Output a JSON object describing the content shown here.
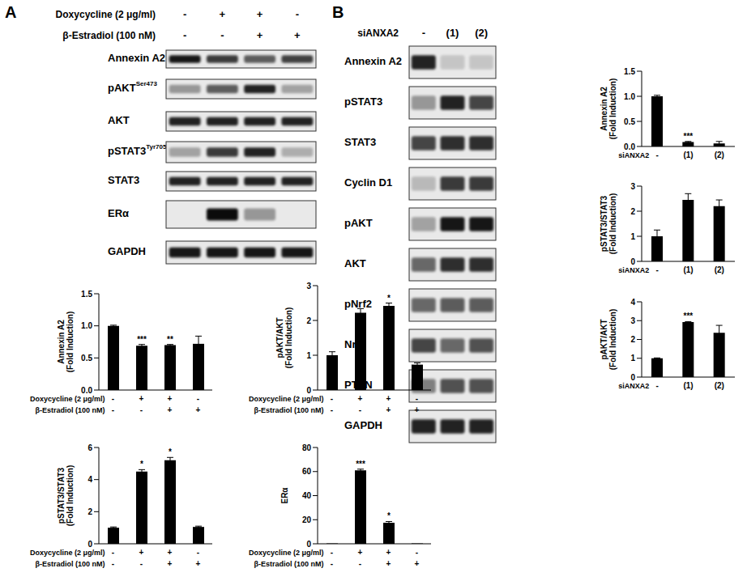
{
  "panel_labels": [
    "A",
    "B"
  ],
  "blots": {
    "A": {
      "header": [
        {
          "label": "Doxycycline (2 μg/ml)",
          "signs": [
            "-",
            "+",
            "+",
            "-"
          ]
        },
        {
          "label": "β-Estradiol (100 nM)",
          "signs": [
            "-",
            "-",
            "+",
            "+"
          ]
        }
      ],
      "rows": [
        {
          "label": "Annexin A2",
          "intensity": [
            0.9,
            0.75,
            0.6,
            0.72
          ]
        },
        {
          "label": "pAKT",
          "superscript": "Ser473",
          "intensity": [
            0.35,
            0.6,
            0.85,
            0.3
          ]
        },
        {
          "label": "AKT",
          "intensity": [
            0.85,
            0.85,
            0.85,
            0.85
          ]
        },
        {
          "label": "pSTAT3",
          "superscript": "Tyr705",
          "intensity": [
            0.3,
            0.75,
            0.85,
            0.25
          ]
        },
        {
          "label": "STAT3",
          "intensity": [
            0.85,
            0.85,
            0.85,
            0.85
          ]
        },
        {
          "label": "ERα",
          "intensity": [
            0,
            0.95,
            0.35,
            0
          ]
        },
        {
          "label": "GAPDH",
          "intensity": [
            0.9,
            0.9,
            0.9,
            0.9
          ]
        }
      ]
    },
    "B": {
      "header": [
        {
          "label": "siANXA2",
          "signs": [
            "-",
            "(1)",
            "(2)"
          ]
        }
      ],
      "rows": [
        {
          "label": "Annexin A2",
          "intensity": [
            0.85,
            0.15,
            0.15
          ]
        },
        {
          "label": "pSTAT3",
          "intensity": [
            0.35,
            0.85,
            0.7
          ]
        },
        {
          "label": "STAT3",
          "intensity": [
            0.7,
            0.8,
            0.8
          ]
        },
        {
          "label": "Cyclin D1",
          "intensity": [
            0.2,
            0.75,
            0.75
          ]
        },
        {
          "label": "pAKT",
          "intensity": [
            0.3,
            0.9,
            0.9
          ]
        },
        {
          "label": "AKT",
          "intensity": [
            0.55,
            0.8,
            0.8
          ]
        },
        {
          "label": "pNrf2",
          "intensity": [
            0.55,
            0.6,
            0.6
          ]
        },
        {
          "label": "Nrf2",
          "intensity": [
            0.7,
            0.55,
            0.65
          ]
        },
        {
          "label": "PTEN",
          "intensity": [
            0.45,
            0.65,
            0.65
          ]
        },
        {
          "label": "GAPDH",
          "intensity": [
            0.85,
            0.85,
            0.85
          ]
        }
      ]
    }
  },
  "chart_data": [
    {
      "type": "bar",
      "ylabel": [
        "Annexin A2",
        "(Fold Induction)"
      ],
      "x_rows": [
        {
          "label": "Doxycycline (2 μg/ml)",
          "values": [
            "-",
            "+",
            "+",
            "-"
          ]
        },
        {
          "label": "β-Estradiol (100 nM)",
          "values": [
            "-",
            "-",
            "+",
            "+"
          ]
        }
      ],
      "values": [
        1.0,
        0.69,
        0.7,
        0.72
      ],
      "errors": [
        0.01,
        0.02,
        0.01,
        0.12
      ],
      "significance": [
        null,
        "***",
        "**",
        null
      ],
      "color": "#000000",
      "ylim": [
        0,
        1.5
      ],
      "yticks": [
        {
          "value": 0,
          "label": "0.0"
        },
        {
          "value": 0.5,
          "label": "0.5"
        },
        {
          "value": 1,
          "label": "1.0"
        },
        {
          "value": 1.5,
          "label": "1.5"
        }
      ]
    },
    {
      "type": "bar",
      "ylabel": [
        "pAKT/AKT",
        "(Fold Induction)"
      ],
      "x_rows": [
        {
          "label": "Doxycycline (2 μg/ml)",
          "values": [
            "-",
            "+",
            "+",
            "-"
          ]
        },
        {
          "label": "β-Estradiol (100 nM)",
          "values": [
            "-",
            "-",
            "+",
            "+"
          ]
        }
      ],
      "values": [
        1.0,
        2.22,
        2.42,
        0.73
      ],
      "errors": [
        0.1,
        0.12,
        0.08,
        0.05
      ],
      "significance": [
        null,
        null,
        "*",
        null
      ],
      "color": "#000000",
      "ylim": [
        0,
        3
      ],
      "yticks": [
        0,
        1,
        2,
        3
      ]
    },
    {
      "type": "bar",
      "ylabel": [
        "pSTAT3/STAT3",
        "(Fold Induction)"
      ],
      "x_rows": [
        {
          "label": "Doxycycline (2 μg/ml)",
          "values": [
            "-",
            "+",
            "+",
            "-"
          ]
        },
        {
          "label": "β-Estradiol (100 nM)",
          "values": [
            "-",
            "-",
            "+",
            "+"
          ]
        }
      ],
      "values": [
        1.0,
        4.5,
        5.2,
        1.05
      ],
      "errors": [
        0.05,
        0.12,
        0.18,
        0.05
      ],
      "significance": [
        null,
        "*",
        "*",
        null
      ],
      "color": "#000000",
      "ylim": [
        0,
        6
      ],
      "yticks": [
        0,
        2,
        4,
        6
      ]
    },
    {
      "type": "bar",
      "ylabel": [
        "ERα"
      ],
      "x_rows": [
        {
          "label": "Doxycycline (2 μg/ml)",
          "values": [
            "-",
            "+",
            "+",
            "-"
          ]
        },
        {
          "label": "β-Estradiol (100 nM)",
          "values": [
            "-",
            "-",
            "+",
            "+"
          ]
        }
      ],
      "values": [
        0.3,
        61,
        17.5,
        0.3
      ],
      "errors": [
        0,
        1,
        1,
        0
      ],
      "significance": [
        null,
        "***",
        "*",
        null
      ],
      "color": "#000000",
      "ylim": [
        0,
        80
      ],
      "yticks": [
        0,
        20,
        40,
        60,
        80
      ]
    },
    {
      "type": "bar",
      "ylabel": [
        "Annexin A2",
        "(Fold Induction)"
      ],
      "x_rows": [
        {
          "label": "siANXA2",
          "values": [
            "-",
            "(1)",
            "(2)"
          ]
        }
      ],
      "values": [
        1.0,
        0.09,
        0.06
      ],
      "errors": [
        0.02,
        0.01,
        0.04
      ],
      "significance": [
        null,
        "***",
        null
      ],
      "color": "#000000",
      "ylim": [
        0,
        1.5
      ],
      "yticks": [
        {
          "value": 0,
          "label": "0.0"
        },
        {
          "value": 0.5,
          "label": "0.5"
        },
        {
          "value": 1,
          "label": "1.0"
        },
        {
          "value": 1.5,
          "label": "1.5"
        }
      ]
    },
    {
      "type": "bar",
      "ylabel": [
        "pSTAT3/STAT3",
        "(Fold Induction)"
      ],
      "x_rows": [
        {
          "label": "siANXA2",
          "values": [
            "-",
            "(1)",
            "(2)"
          ]
        }
      ],
      "values": [
        1.0,
        2.45,
        2.2
      ],
      "errors": [
        0.25,
        0.25,
        0.25
      ],
      "significance": [
        null,
        null,
        null
      ],
      "color": "#000000",
      "ylim": [
        0,
        3
      ],
      "yticks": [
        0,
        1,
        2,
        3
      ]
    },
    {
      "type": "bar",
      "ylabel": [
        "pAKT/AKT",
        "(Fold Induction)"
      ],
      "x_rows": [
        {
          "label": "siANXA2",
          "values": [
            "-",
            "(1)",
            "(2)"
          ]
        }
      ],
      "values": [
        1.0,
        2.92,
        2.35
      ],
      "errors": [
        0.02,
        0.03,
        0.4
      ],
      "significance": [
        null,
        "***",
        null
      ],
      "color": "#000000",
      "ylim": [
        0,
        4
      ],
      "yticks": [
        0,
        1,
        2,
        3,
        4
      ]
    }
  ]
}
